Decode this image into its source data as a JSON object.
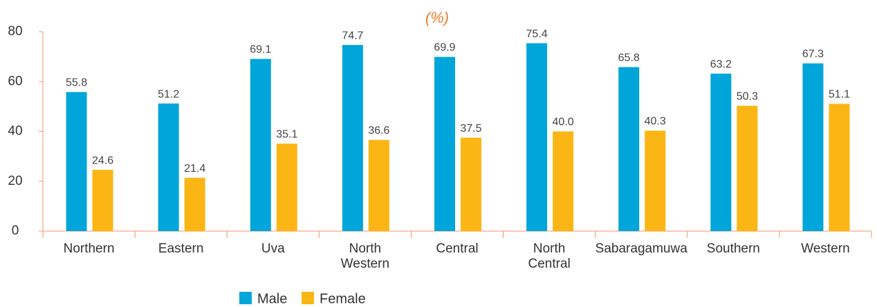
{
  "chart_data": {
    "type": "bar",
    "subtitle": "(%)",
    "categories": [
      "Northern",
      "Eastern",
      "Uva",
      "North Western",
      "Central",
      "North Central",
      "Sabaragamuwa",
      "Southern",
      "Western"
    ],
    "series": [
      {
        "name": "Male",
        "color": "#00a6d9",
        "values": [
          55.8,
          51.2,
          69.1,
          74.7,
          69.9,
          75.4,
          65.8,
          63.2,
          67.3
        ],
        "value_labels": [
          "55.8",
          "51.2",
          "69.1",
          "74.7",
          "69.9",
          "75.4",
          "65.8",
          "63.2",
          "67.3"
        ]
      },
      {
        "name": "Female",
        "color": "#fbb615",
        "values": [
          24.6,
          21.4,
          35.1,
          36.6,
          37.5,
          40.0,
          40.3,
          50.3,
          51.1
        ],
        "value_labels": [
          "24.6",
          "21.4",
          "35.1",
          "36.6",
          "37.5",
          "40.0",
          "40.3",
          "50.3",
          "51.1"
        ]
      }
    ],
    "ylim": [
      0,
      80
    ],
    "yticks": [
      0,
      20,
      40,
      60,
      80
    ],
    "grid": false,
    "legend": "bottom"
  }
}
